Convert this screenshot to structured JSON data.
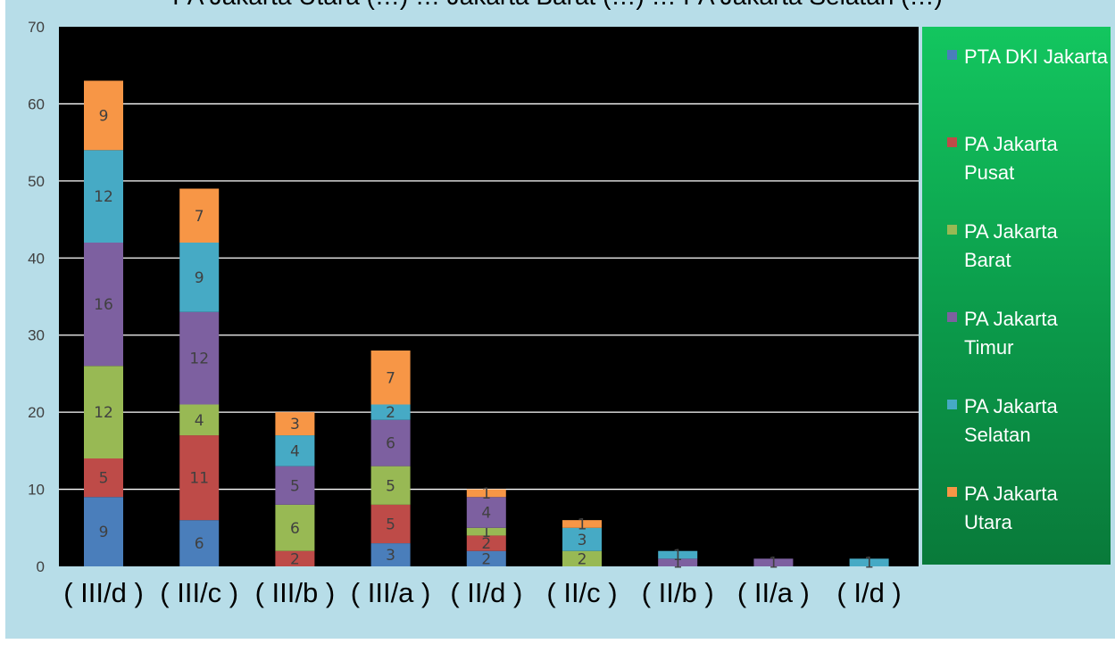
{
  "chart_data": {
    "type": "bar",
    "stacked": true,
    "title": "PA Jakarta Utara (…) … Jakarta Barat (…) … PA Jakarta Selatan (…)",
    "categories": [
      "( III/d )",
      "( III/c )",
      "( III/b )",
      "( III/a )",
      "( II/d )",
      "( II/c )",
      "( II/b )",
      "( II/a )",
      "( I/d )"
    ],
    "series": [
      {
        "name": "PTA DKI Jakarta",
        "color": "#4a7ebb",
        "values": [
          9,
          6,
          0,
          3,
          2,
          0,
          0,
          0,
          0
        ]
      },
      {
        "name": "PA Jakarta Pusat",
        "color": "#be4b48",
        "values": [
          5,
          11,
          2,
          5,
          2,
          0,
          0,
          0,
          0
        ]
      },
      {
        "name": "PA Jakarta Barat",
        "color": "#98b954",
        "values": [
          12,
          4,
          6,
          5,
          1,
          2,
          0,
          0,
          0
        ]
      },
      {
        "name": "PA Jakarta Timur",
        "color": "#7d60a0",
        "values": [
          16,
          12,
          5,
          6,
          4,
          0,
          1,
          1,
          0
        ]
      },
      {
        "name": "PA Jakarta Selatan",
        "color": "#46aac5",
        "values": [
          12,
          9,
          4,
          2,
          0,
          3,
          1,
          0,
          1
        ]
      },
      {
        "name": "PA Jakarta Utara",
        "color": "#f79646",
        "values": [
          9,
          7,
          3,
          7,
          1,
          1,
          0,
          0,
          0
        ]
      }
    ],
    "ylim": [
      0,
      70
    ],
    "yticks": [
      0,
      10,
      20,
      30,
      40,
      50,
      60,
      70
    ],
    "grid": true,
    "legend": "right",
    "plot_background": "#000000",
    "frame_background": "#b7dde8"
  }
}
